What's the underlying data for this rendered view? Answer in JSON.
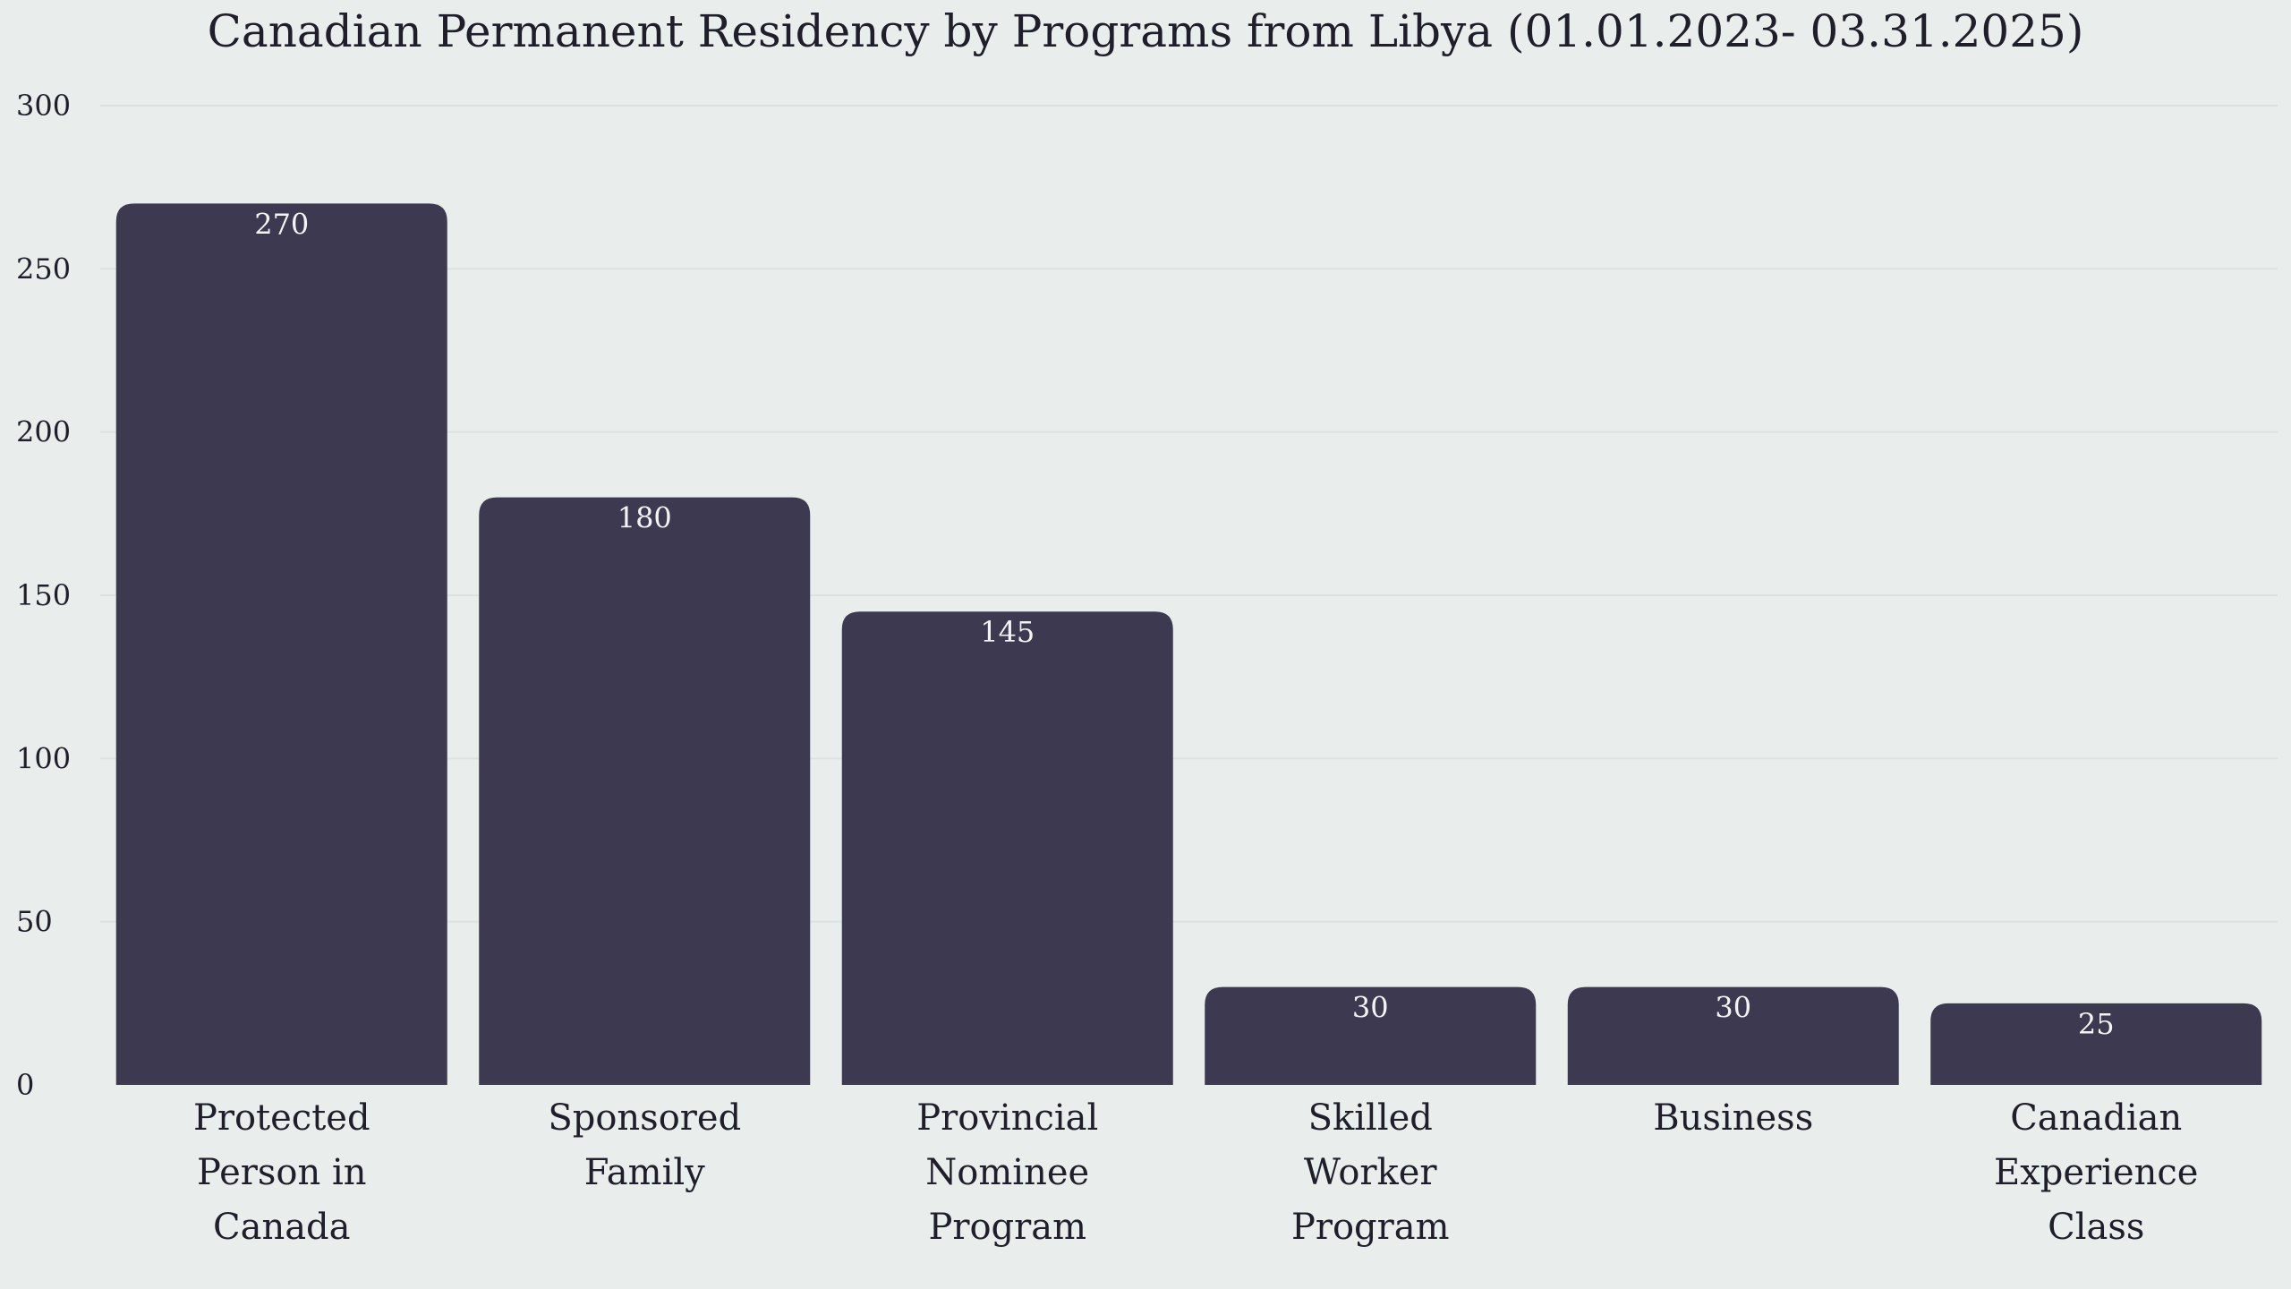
{
  "chart_data": {
    "type": "bar",
    "title": "Canadian Permanent Residency by Programs from Libya (01.01.2023- 03.31.2025)",
    "xlabel": "",
    "ylabel": "",
    "categories": [
      [
        "Protected",
        "Person in",
        "Canada"
      ],
      [
        "Sponsored",
        "Family"
      ],
      [
        "Provincial",
        "Nominee",
        "Program"
      ],
      [
        "Skilled",
        "Worker",
        "Program"
      ],
      [
        "Business"
      ],
      [
        "Canadian",
        "Experience",
        "Class"
      ]
    ],
    "values": [
      270,
      180,
      145,
      30,
      30,
      25
    ],
    "ylim": [
      0,
      300
    ],
    "yticks": [
      0,
      50,
      100,
      150,
      200,
      250,
      300
    ],
    "grid": true,
    "legend": "none",
    "bar_color": "#3d3950"
  }
}
